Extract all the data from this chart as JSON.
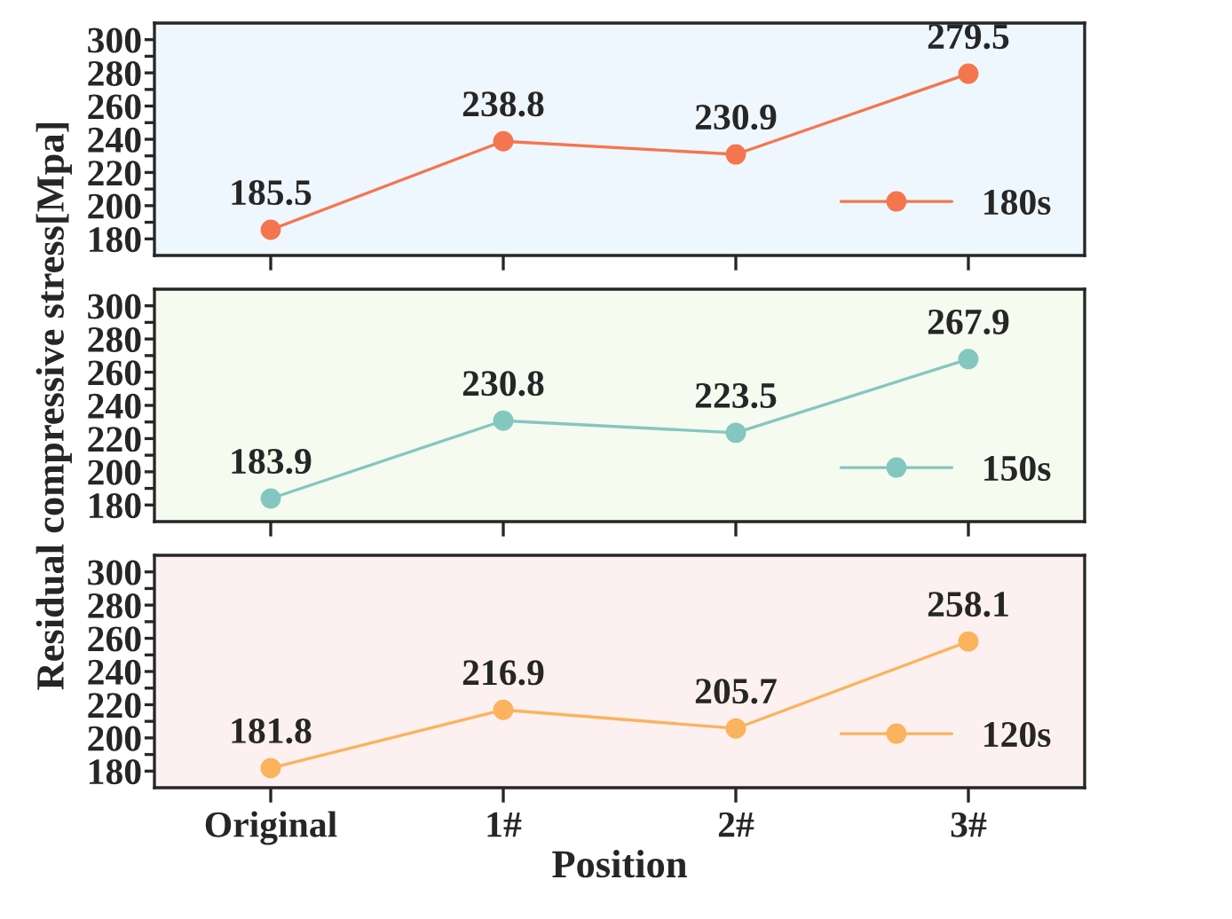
{
  "chart_data": [
    {
      "type": "line",
      "categories": [
        null,
        null,
        null,
        null
      ],
      "series": [
        {
          "name": "180s",
          "color": "#f4764f",
          "values": [
            185.5,
            238.8,
            230.9,
            279.5
          ]
        }
      ],
      "ylim": [
        170,
        310
      ],
      "yticks": [
        180,
        {
          "value": 190,
          "label": null
        },
        200,
        {
          "value": 210,
          "label": null
        },
        220,
        {
          "value": 230,
          "label": null
        },
        240,
        {
          "value": 250,
          "label": null
        },
        260,
        {
          "value": 270,
          "label": null
        },
        280,
        {
          "value": 290,
          "label": null
        },
        300
      ],
      "data_labels": true,
      "legend": "bottom right",
      "marker": "circle",
      "line_style": "solid",
      "tick_labels": "y",
      "grid": false
    },
    {
      "type": "line",
      "categories": [
        null,
        null,
        null,
        null
      ],
      "series": [
        {
          "name": "150s",
          "color": "#84c7c0",
          "values": [
            183.9,
            230.8,
            223.5,
            267.9
          ]
        }
      ],
      "ylim": [
        170,
        310
      ],
      "yticks": [
        180,
        {
          "value": 190,
          "label": null
        },
        200,
        {
          "value": 210,
          "label": null
        },
        220,
        {
          "value": 230,
          "label": null
        },
        240,
        {
          "value": 250,
          "label": null
        },
        260,
        {
          "value": 270,
          "label": null
        },
        280,
        {
          "value": 290,
          "label": null
        },
        300
      ],
      "ylabel": "Residual compressive stress[Mpa]",
      "data_labels": true,
      "legend": "bottom right",
      "marker": "circle",
      "line_style": "solid",
      "tick_labels": "y",
      "grid": false
    },
    {
      "type": "line",
      "categories": [
        "Original",
        "1#",
        "2#",
        "3#"
      ],
      "series": [
        {
          "name": "120s",
          "color": "#fbb35e",
          "values": [
            181.8,
            216.9,
            205.7,
            258.1
          ]
        }
      ],
      "ylim": [
        170,
        310
      ],
      "yticks": [
        180,
        {
          "value": 190,
          "label": null
        },
        200,
        {
          "value": 210,
          "label": null
        },
        220,
        {
          "value": 230,
          "label": null
        },
        240,
        {
          "value": 250,
          "label": null
        },
        260,
        {
          "value": 270,
          "label": null
        },
        280,
        {
          "value": 290,
          "label": null
        },
        300
      ],
      "xlabel": "Position",
      "data_labels": true,
      "legend": "bottom right",
      "marker": "circle",
      "line_style": "solid",
      "grid": false
    }
  ]
}
